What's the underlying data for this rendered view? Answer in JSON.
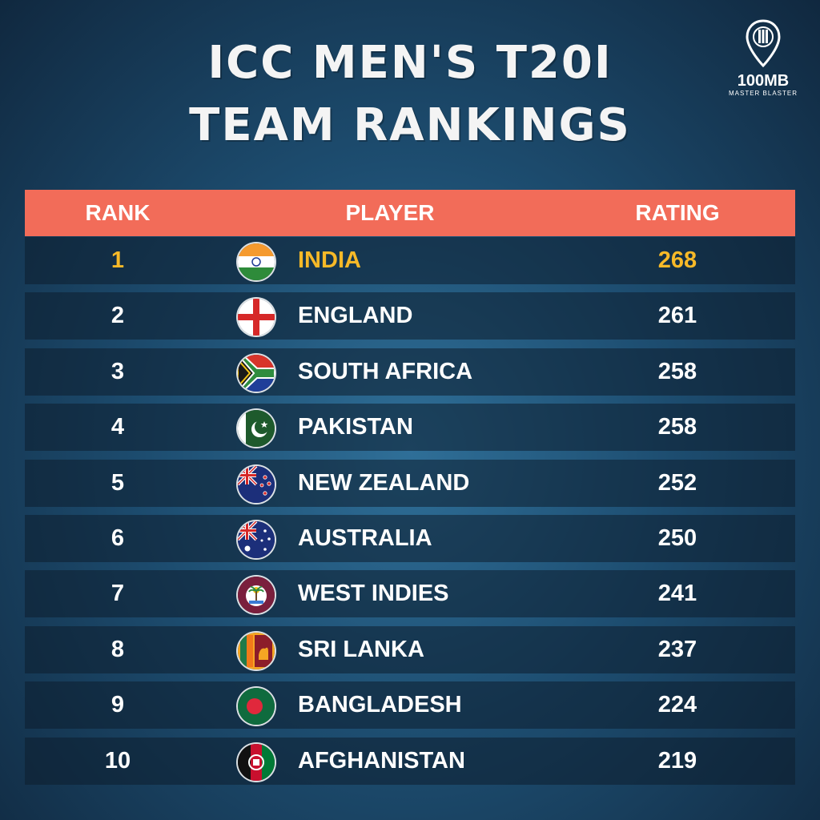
{
  "title": {
    "line1": "ICC MEN'S  T20I",
    "line2": "TEAM RANKINGS"
  },
  "logo": {
    "name": "100MB",
    "tagline": "MASTER BLASTER",
    "icon": "location-pin-cricket-icon"
  },
  "table": {
    "headers": {
      "rank": "RANK",
      "player": "PLAYER",
      "rating": "RATING"
    },
    "header_color": "#f26c59",
    "highlight_color": "#f7b928",
    "rows": [
      {
        "rank": "1",
        "team": "INDIA",
        "rating": "268",
        "flag_icon": "india-flag-icon"
      },
      {
        "rank": "2",
        "team": "ENGLAND",
        "rating": "261",
        "flag_icon": "england-flag-icon"
      },
      {
        "rank": "3",
        "team": "SOUTH AFRICA",
        "rating": "258",
        "flag_icon": "south-africa-flag-icon"
      },
      {
        "rank": "4",
        "team": "PAKISTAN",
        "rating": "258",
        "flag_icon": "pakistan-flag-icon"
      },
      {
        "rank": "5",
        "team": "NEW ZEALAND",
        "rating": "252",
        "flag_icon": "new-zealand-flag-icon"
      },
      {
        "rank": "6",
        "team": "AUSTRALIA",
        "rating": "250",
        "flag_icon": "australia-flag-icon"
      },
      {
        "rank": "7",
        "team": "WEST INDIES",
        "rating": "241",
        "flag_icon": "west-indies-flag-icon"
      },
      {
        "rank": "8",
        "team": "SRI LANKA",
        "rating": "237",
        "flag_icon": "sri-lanka-flag-icon"
      },
      {
        "rank": "9",
        "team": "BANGLADESH",
        "rating": "224",
        "flag_icon": "bangladesh-flag-icon"
      },
      {
        "rank": "10",
        "team": "AFGHANISTAN",
        "rating": "219",
        "flag_icon": "afghanistan-flag-icon"
      }
    ]
  }
}
